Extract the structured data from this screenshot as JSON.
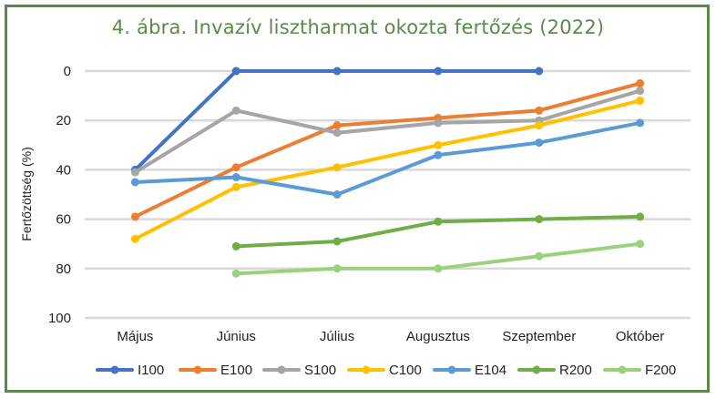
{
  "chart_data": {
    "type": "line",
    "title": "4. ábra. Invazív lisztharmat okozta fertőzés (2022)",
    "xlabel": "",
    "ylabel": "Fertőzöttség (%)",
    "categories": [
      "Május",
      "Június",
      "Július",
      "Augusztus",
      "Szeptember",
      "Október"
    ],
    "ylim": [
      0,
      100
    ],
    "yticks": [
      0,
      20,
      40,
      60,
      80,
      100
    ],
    "y_inverted": true,
    "grid": "horizontal",
    "legend_position": "bottom",
    "series": [
      {
        "name": "I100",
        "color": "#4472c4",
        "values": [
          40,
          0,
          0,
          0,
          0,
          null
        ]
      },
      {
        "name": "E100",
        "color": "#ed7d31",
        "values": [
          59,
          39,
          22,
          19,
          16,
          5
        ]
      },
      {
        "name": "S100",
        "color": "#a5a5a5",
        "values": [
          41,
          16,
          25,
          21,
          20,
          8
        ]
      },
      {
        "name": "C100",
        "color": "#ffc000",
        "values": [
          68,
          47,
          39,
          30,
          22,
          12
        ]
      },
      {
        "name": "E104",
        "color": "#5b9bd5",
        "values": [
          45,
          43,
          50,
          34,
          29,
          21
        ]
      },
      {
        "name": "R200",
        "color": "#70ad47",
        "values": [
          null,
          71,
          69,
          61,
          60,
          59
        ]
      },
      {
        "name": "F200",
        "color": "#9bd17a",
        "values": [
          null,
          82,
          80,
          80,
          75,
          70
        ]
      }
    ]
  }
}
